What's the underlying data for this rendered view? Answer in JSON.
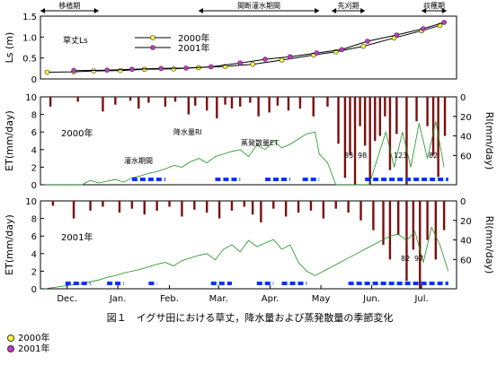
{
  "colors": {
    "y2000": "#ffff33",
    "y2001": "#cc33cc",
    "rain": "#7a0f0f",
    "et": "#1f8f1f",
    "irr": "#1133ee",
    "axis": "#000000"
  },
  "months": [
    "Dec.",
    "Jan.",
    "Feb.",
    "Mar.",
    "Apr.",
    "May",
    "Jun.",
    "Jul."
  ],
  "caption": "図１　イグサ田における草丈，降水量および蒸発散量の季節変化",
  "footnote_legend": [
    {
      "label": "2000年",
      "color": "#ffff33"
    },
    {
      "label": "2001年",
      "color": "#cc33cc"
    }
  ],
  "chart_data": [
    {
      "type": "line",
      "phases": [
        {
          "label": "移植期",
          "start": 0,
          "end": 70
        },
        {
          "label": "間断灌水期間",
          "start": 190,
          "end": 335
        },
        {
          "label": "先刈期",
          "start": 350,
          "end": 390
        },
        {
          "label": "収穫期",
          "start": 458,
          "end": 488
        }
      ],
      "ylabel": "Ls (m)",
      "panel_label": "草丈Ls",
      "ylim": [
        0,
        1.5
      ],
      "yticks": [
        "0",
        "0.5",
        "1.0",
        "1.5"
      ],
      "series": [
        {
          "name": "2000年",
          "color": "#ffff33",
          "x": [
            8,
            40,
            64,
            96,
            125,
            160,
            190,
            222,
            255,
            290,
            328,
            355,
            388,
            425,
            458,
            480
          ],
          "y": [
            0.16,
            0.17,
            0.19,
            0.2,
            0.23,
            0.24,
            0.27,
            0.3,
            0.35,
            0.45,
            0.57,
            0.65,
            0.78,
            0.98,
            1.15,
            1.28
          ]
        },
        {
          "name": "2001年",
          "color": "#cc33cc",
          "x": [
            40,
            80,
            110,
            145,
            175,
            205,
            240,
            270,
            300,
            332,
            362,
            393,
            428,
            460,
            485
          ],
          "y": [
            0.2,
            0.21,
            0.23,
            0.25,
            0.26,
            0.29,
            0.38,
            0.47,
            0.53,
            0.62,
            0.7,
            0.9,
            1.05,
            1.2,
            1.35
          ]
        }
      ]
    },
    {
      "type": "bar",
      "year_label": "2000年",
      "ylabel_left": "ET(mm/day)",
      "ylim_left": [
        0,
        10
      ],
      "yticks_left": [
        "0",
        "2",
        "4",
        "6",
        "8",
        "10"
      ],
      "ylabel_right": "Rl(mm/day)",
      "ylim_right": [
        0,
        90
      ],
      "yticks_right": [
        "0",
        "20",
        "40",
        "60"
      ],
      "rain_label": "降水量Rl",
      "et_label": "蒸発散量ET",
      "irrigation_label": "灌水期間",
      "annotations": [
        "83",
        "98",
        "123",
        "82"
      ],
      "rain": {
        "x": [
          12,
          45,
          75,
          90,
          108,
          118,
          130,
          150,
          162,
          178,
          186,
          200,
          212,
          222,
          230,
          240,
          252,
          262,
          275,
          285,
          298,
          312,
          328,
          345,
          358,
          366,
          372,
          378,
          384,
          390,
          396,
          402,
          408,
          414,
          420,
          428,
          440,
          452,
          465,
          472,
          478,
          486
        ],
        "v": [
          10,
          5,
          15,
          8,
          4,
          12,
          6,
          10,
          5,
          18,
          9,
          14,
          22,
          8,
          12,
          10,
          6,
          20,
          16,
          9,
          14,
          12,
          20,
          10,
          48,
          83,
          60,
          92,
          30,
          50,
          98,
          45,
          40,
          20,
          75,
          38,
          123,
          25,
          30,
          60,
          82,
          40
        ]
      },
      "et": {
        "x": [
          5,
          20,
          35,
          50,
          60,
          70,
          80,
          90,
          100,
          110,
          120,
          130,
          140,
          150,
          160,
          170,
          180,
          190,
          200,
          210,
          220,
          230,
          240,
          250,
          260,
          270,
          280,
          290,
          300,
          310,
          320,
          330,
          335,
          345,
          355,
          365,
          380,
          395,
          405,
          415,
          425,
          435,
          445,
          455,
          465,
          475,
          485
        ],
        "v": [
          0,
          0,
          0,
          0,
          0.5,
          0.2,
          0.4,
          0.6,
          0.3,
          0.8,
          1.0,
          1.3,
          1.5,
          1.8,
          2.2,
          2.0,
          2.6,
          3.0,
          2.5,
          3.2,
          3.5,
          3.8,
          4.0,
          3.2,
          4.5,
          4.0,
          5.0,
          4.2,
          4.6,
          5.2,
          5.8,
          6.0,
          3.5,
          2.5,
          0,
          0,
          0,
          0,
          3.0,
          6.0,
          2.0,
          6.0,
          2.0,
          7.0,
          3.0,
          7.2,
          2.0
        ]
      },
      "irrigation": [
        [
          110,
          150
        ],
        [
          210,
          240
        ],
        [
          270,
          300
        ],
        [
          315,
          335
        ],
        [
          390,
          490
        ]
      ]
    },
    {
      "type": "bar",
      "year_label": "2001年",
      "ylabel_left": "ET(mm/day)",
      "ylim_left": [
        0,
        10
      ],
      "yticks_left": [
        "0",
        "2",
        "4",
        "6",
        "8",
        "10"
      ],
      "ylabel_right": "Rl(mm/day)",
      "ylim_right": [
        0,
        90
      ],
      "yticks_right": [
        "0",
        "20",
        "40",
        "60"
      ],
      "annotations": [
        "82",
        "97"
      ],
      "rain": {
        "x": [
          15,
          40,
          60,
          75,
          95,
          110,
          125,
          140,
          155,
          170,
          185,
          200,
          215,
          230,
          245,
          255,
          265,
          280,
          295,
          310,
          325,
          340,
          355,
          370,
          385,
          400,
          412,
          420,
          430,
          440,
          448,
          456,
          465,
          475,
          485
        ],
        "v": [
          5,
          18,
          10,
          6,
          12,
          8,
          14,
          10,
          6,
          16,
          9,
          12,
          18,
          10,
          6,
          14,
          22,
          8,
          16,
          12,
          10,
          18,
          8,
          12,
          20,
          30,
          45,
          60,
          35,
          82,
          50,
          97,
          40,
          60,
          30
        ]
      },
      "et": {
        "x": [
          5,
          20,
          35,
          50,
          60,
          70,
          80,
          90,
          100,
          110,
          120,
          130,
          140,
          150,
          160,
          170,
          180,
          190,
          200,
          210,
          220,
          230,
          240,
          250,
          260,
          270,
          280,
          290,
          300,
          310,
          320,
          330,
          340,
          350,
          360,
          370,
          380,
          390,
          400,
          410,
          420,
          430,
          440,
          450,
          460,
          470,
          480,
          490
        ],
        "v": [
          0,
          0.2,
          0.4,
          0.6,
          0.8,
          1.0,
          1.3,
          1.5,
          1.8,
          2.0,
          2.2,
          2.5,
          2.8,
          3.0,
          2.6,
          3.2,
          3.5,
          3.8,
          4.0,
          3.3,
          4.5,
          5.0,
          4.2,
          5.5,
          4.8,
          5.2,
          5.6,
          4.5,
          5.0,
          3.0,
          2.0,
          1.5,
          2.0,
          2.5,
          3.0,
          3.5,
          4.0,
          4.5,
          5.0,
          5.5,
          6.0,
          6.2,
          5.5,
          6.5,
          3.0,
          7.0,
          5.0,
          2.0
        ]
      },
      "irrigation": [
        [
          30,
          60
        ],
        [
          80,
          100
        ],
        [
          130,
          140
        ],
        [
          205,
          230
        ],
        [
          260,
          280
        ],
        [
          290,
          320
        ],
        [
          370,
          490
        ]
      ]
    }
  ]
}
